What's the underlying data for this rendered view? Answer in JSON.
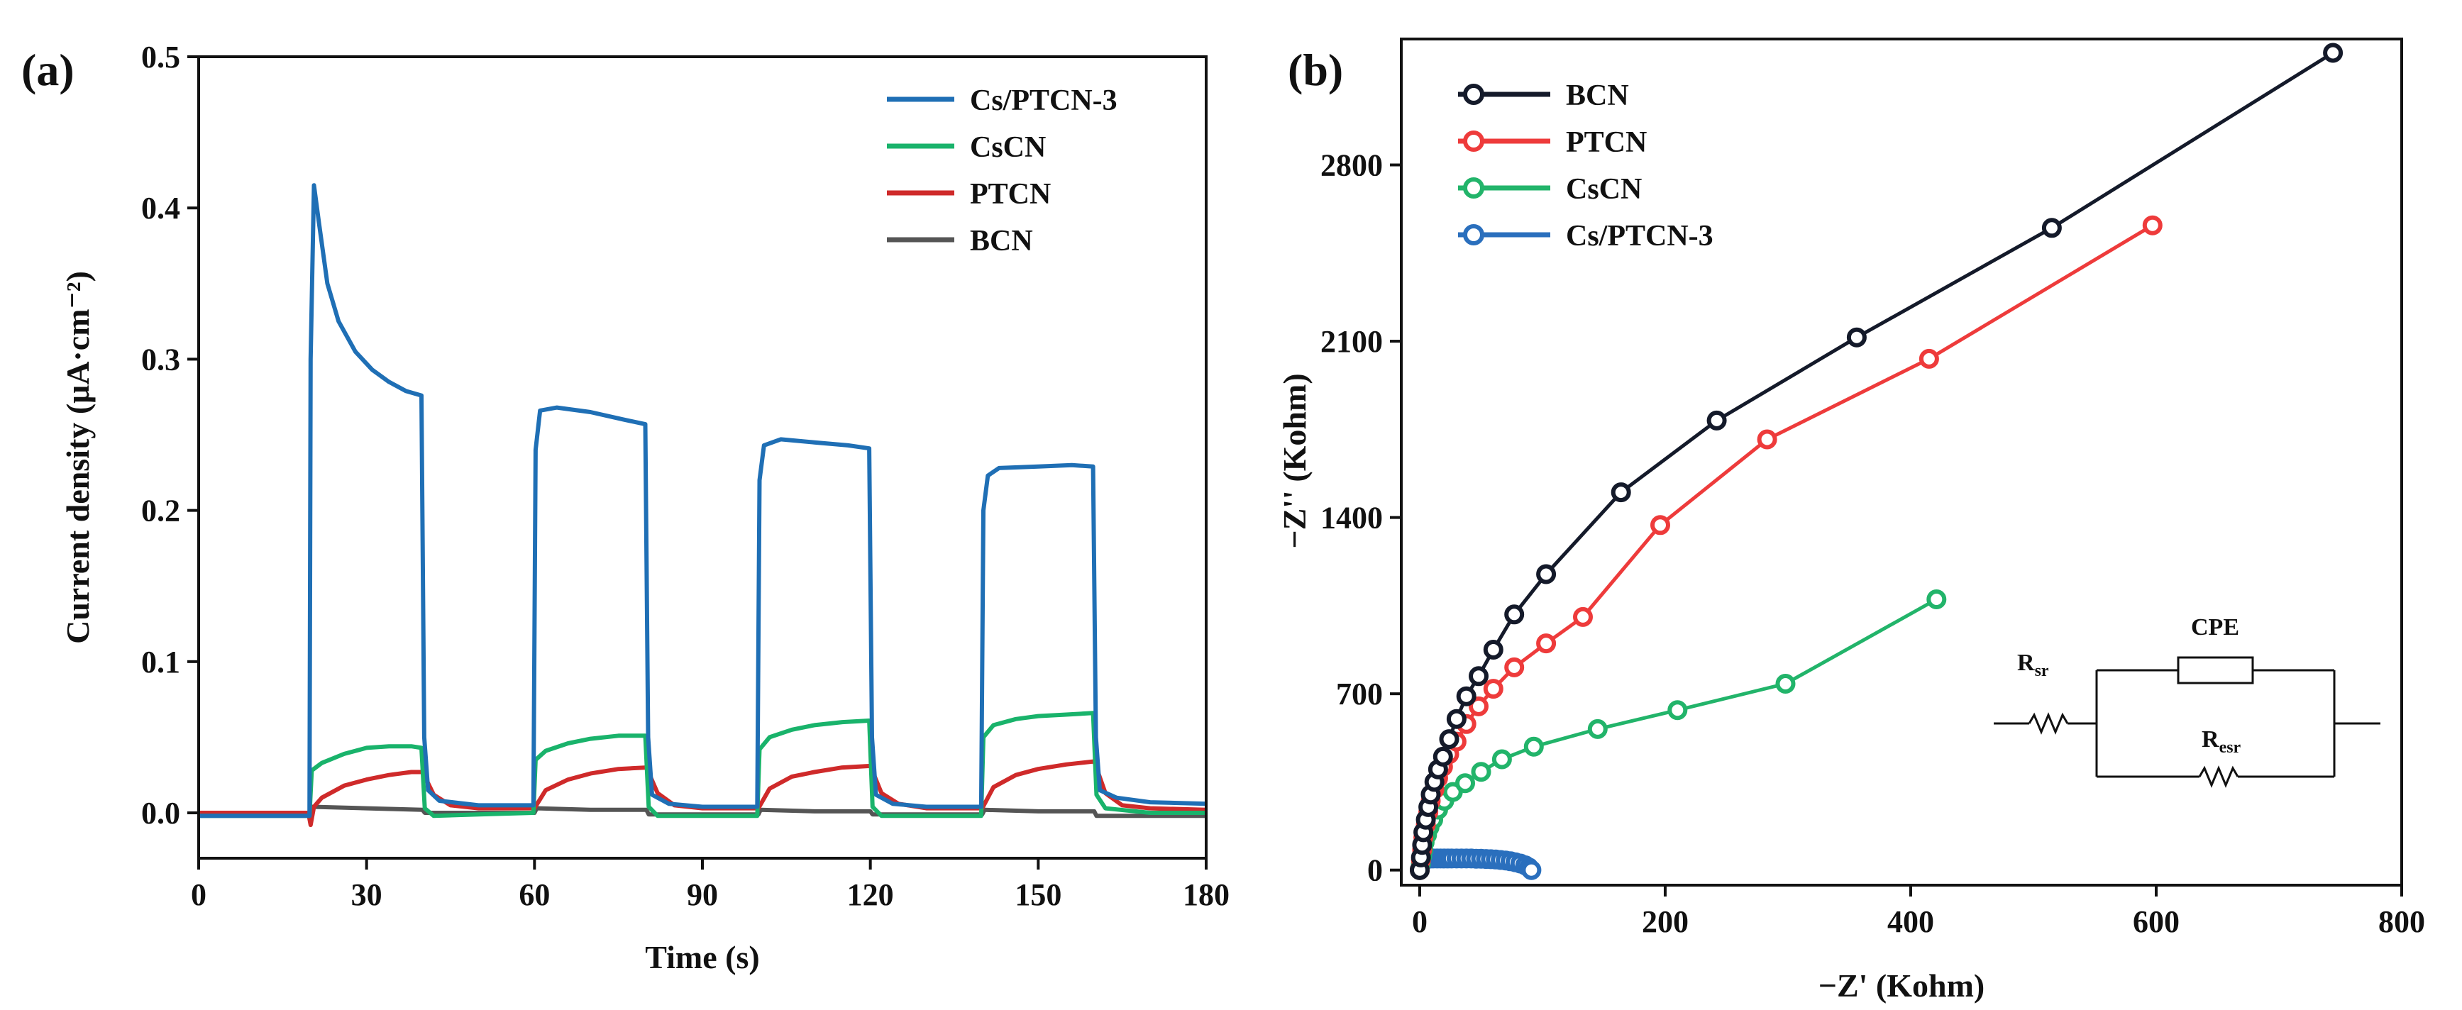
{
  "figure": "two-panel",
  "chart_data": [
    {
      "panel_label": "(a)",
      "type": "line",
      "xlabel": "Time (s)",
      "ylabel": "Current density (μA·cm⁻²)",
      "xlim": [
        0,
        180
      ],
      "ylim": [
        -0.03,
        0.5
      ],
      "xticks": [
        0,
        30,
        60,
        90,
        120,
        150,
        180
      ],
      "xtick_labels": [
        "0",
        "30",
        "60",
        "90",
        "120",
        "150",
        "180"
      ],
      "yticks": [
        0.0,
        0.1,
        0.2,
        0.3,
        0.4,
        0.5
      ],
      "ytick_labels": [
        "0.0",
        "0.1",
        "0.2",
        "0.3",
        "0.4",
        "0.5"
      ],
      "legend_position": "top-right",
      "series": [
        {
          "name": "Cs/PTCN-3",
          "color": "#1f6fb5",
          "x": [
            0,
            19.8,
            20,
            20.6,
            21.5,
            23,
            25,
            28,
            31,
            34,
            37,
            39.8,
            40.3,
            41,
            43,
            50,
            59.8,
            60.2,
            61,
            64,
            70,
            76,
            79.8,
            80.3,
            81,
            84,
            90,
            99.8,
            100.2,
            101,
            104,
            110,
            116,
            119.8,
            120.3,
            121,
            124,
            130,
            139.8,
            140.2,
            141,
            143,
            150,
            156,
            159.8,
            160.3,
            161,
            164,
            170,
            180
          ],
          "y": [
            -0.002,
            -0.002,
            0.3,
            0.415,
            0.39,
            0.35,
            0.325,
            0.305,
            0.293,
            0.285,
            0.279,
            0.276,
            0.05,
            0.015,
            0.008,
            0.005,
            0.005,
            0.24,
            0.266,
            0.268,
            0.265,
            0.26,
            0.257,
            0.05,
            0.012,
            0.006,
            0.004,
            0.004,
            0.22,
            0.243,
            0.247,
            0.245,
            0.243,
            0.241,
            0.05,
            0.012,
            0.006,
            0.004,
            0.004,
            0.2,
            0.223,
            0.228,
            0.229,
            0.23,
            0.229,
            0.05,
            0.015,
            0.01,
            0.007,
            0.006
          ]
        },
        {
          "name": "CsCN",
          "color": "#19b36b",
          "x": [
            0,
            19.8,
            20.2,
            22,
            26,
            30,
            34,
            38,
            39.8,
            40.4,
            42,
            50,
            59.8,
            60.2,
            62,
            66,
            70,
            75,
            79.8,
            80.4,
            82,
            90,
            99.8,
            100.2,
            102,
            106,
            110,
            115,
            119.8,
            120.4,
            122,
            130,
            139.8,
            140.2,
            142,
            146,
            150,
            155,
            159.8,
            160.4,
            162,
            170,
            180
          ],
          "y": [
            -0.002,
            -0.002,
            0.028,
            0.033,
            0.039,
            0.043,
            0.044,
            0.044,
            0.043,
            0.003,
            -0.002,
            -0.001,
            0.0,
            0.035,
            0.041,
            0.046,
            0.049,
            0.051,
            0.051,
            0.004,
            -0.002,
            -0.002,
            -0.002,
            0.042,
            0.05,
            0.055,
            0.058,
            0.06,
            0.061,
            0.004,
            -0.002,
            -0.002,
            -0.002,
            0.05,
            0.058,
            0.062,
            0.064,
            0.065,
            0.066,
            0.012,
            0.003,
            0.0,
            0.0
          ]
        },
        {
          "name": "PTCN",
          "color": "#cf2a2a",
          "x": [
            0,
            19.6,
            20,
            20.6,
            22,
            26,
            30,
            34,
            38,
            40,
            42,
            45,
            50,
            60,
            62,
            66,
            70,
            75,
            80,
            82,
            85,
            90,
            100,
            102,
            106,
            110,
            115,
            120,
            122,
            125,
            130,
            140,
            142,
            146,
            150,
            155,
            160,
            162,
            165,
            170,
            180
          ],
          "y": [
            0.0,
            0.0,
            -0.008,
            0.004,
            0.01,
            0.018,
            0.022,
            0.025,
            0.027,
            0.027,
            0.012,
            0.005,
            0.003,
            0.003,
            0.015,
            0.022,
            0.026,
            0.029,
            0.03,
            0.013,
            0.005,
            0.003,
            0.003,
            0.016,
            0.024,
            0.027,
            0.03,
            0.031,
            0.013,
            0.006,
            0.003,
            0.003,
            0.017,
            0.025,
            0.029,
            0.032,
            0.034,
            0.013,
            0.005,
            0.003,
            0.002
          ]
        },
        {
          "name": "BCN",
          "color": "#555555",
          "x": [
            0,
            19.8,
            20.3,
            30,
            40,
            40.4,
            50,
            60,
            60.4,
            70,
            80,
            80.4,
            90,
            100,
            100.4,
            110,
            120,
            120.4,
            130,
            140,
            140.4,
            150,
            160,
            160.4,
            170,
            180
          ],
          "y": [
            0.0,
            0.0,
            0.004,
            0.003,
            0.002,
            0.0,
            0.0,
            0.0,
            0.003,
            0.002,
            0.002,
            -0.001,
            -0.001,
            -0.001,
            0.002,
            0.001,
            0.001,
            -0.001,
            -0.001,
            -0.001,
            0.002,
            0.001,
            0.001,
            -0.002,
            -0.002,
            -0.002
          ]
        }
      ]
    },
    {
      "panel_label": "(b)",
      "type": "scatter",
      "xlabel": "−Z' (Kohm)",
      "ylabel": "−Z'' (Kohm)",
      "xlim": [
        -15,
        800
      ],
      "ylim": [
        -60,
        3300
      ],
      "xticks": [
        0,
        200,
        400,
        600,
        800
      ],
      "xtick_labels": [
        "0",
        "200",
        "400",
        "600",
        "800"
      ],
      "yticks": [
        0,
        700,
        1400,
        2100,
        2800
      ],
      "ytick_labels": [
        "0",
        "700",
        "1400",
        "2100",
        "2800"
      ],
      "legend_position": "top-left",
      "series": [
        {
          "name": "BCN",
          "color": "#141a2a",
          "x": [
            0,
            1,
            2,
            3,
            5,
            7,
            9,
            12,
            15,
            19,
            24,
            30,
            38,
            48,
            60,
            77,
            103,
            164,
            242,
            356,
            515,
            744
          ],
          "y": [
            0,
            50,
            100,
            150,
            200,
            250,
            300,
            350,
            400,
            450,
            520,
            600,
            690,
            770,
            875,
            1015,
            1175,
            1500,
            1785,
            2115,
            2550,
            3245
          ]
        },
        {
          "name": "PTCN",
          "color": "#ee3b3b",
          "x": [
            0,
            1,
            2,
            3,
            5,
            7,
            9,
            12,
            15,
            19,
            24,
            30,
            38,
            48,
            60,
            77,
            103,
            133,
            196,
            283,
            415,
            597
          ],
          "y": [
            0,
            40,
            80,
            130,
            180,
            230,
            275,
            320,
            365,
            410,
            460,
            510,
            580,
            650,
            720,
            805,
            900,
            1005,
            1370,
            1710,
            2030,
            2560
          ]
        },
        {
          "name": "CsCN",
          "color": "#22b46a",
          "x": [
            0,
            1,
            2,
            3,
            4,
            6,
            8,
            11,
            15,
            20,
            27,
            37,
            50,
            67,
            93,
            145,
            210,
            298,
            421
          ],
          "y": [
            0,
            25,
            55,
            80,
            110,
            140,
            170,
            200,
            240,
            275,
            310,
            345,
            390,
            440,
            490,
            560,
            635,
            740,
            1075
          ]
        },
        {
          "name": "Cs/PTCN-3",
          "color": "#2a6fbd",
          "x": [
            0,
            1,
            2,
            3,
            5,
            7,
            9,
            11,
            14,
            17,
            20,
            23,
            26,
            30,
            34,
            38,
            42,
            46,
            50,
            54,
            58,
            62,
            66,
            70,
            74,
            78,
            82,
            86,
            89,
            91
          ],
          "y": [
            0,
            22,
            35,
            40,
            44,
            45,
            46,
            46,
            46,
            46,
            46,
            46,
            46,
            46,
            46,
            46,
            46,
            45,
            45,
            44,
            43,
            42,
            40,
            38,
            35,
            31,
            26,
            19,
            10,
            0
          ]
        }
      ],
      "inset": {
        "type": "equivalent-circuit",
        "labels": {
          "rsr_main": "R",
          "rsr_sub": "sr",
          "cpe": "CPE",
          "resr_main": "R",
          "resr_sub": "esr"
        }
      }
    }
  ]
}
